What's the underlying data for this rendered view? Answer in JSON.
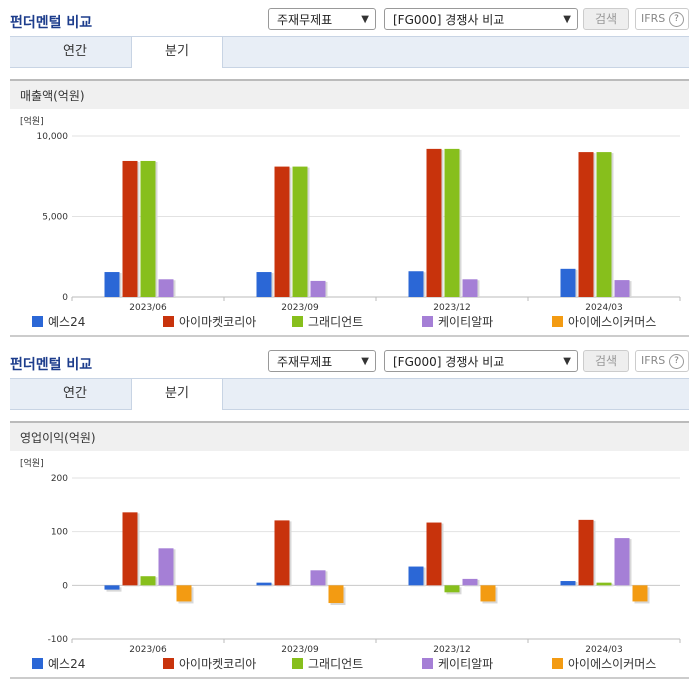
{
  "panels": [
    {
      "title": "펀더멘털 비교",
      "select_type": "주재무제표",
      "select_compare": "[FG000] 경쟁사 비교",
      "search_label": "검색",
      "ifrs_label": "IFRS",
      "ifrs_help": "?",
      "tabs": [
        "연간",
        "분기"
      ],
      "active_tab": 1,
      "section_title": "매출액(억원)"
    },
    {
      "title": "펀더멘털 비교",
      "select_type": "주재무제표",
      "select_compare": "[FG000] 경쟁사 비교",
      "search_label": "검색",
      "ifrs_label": "IFRS",
      "ifrs_help": "?",
      "tabs": [
        "연간",
        "분기"
      ],
      "active_tab": 1,
      "section_title": "영업이익(억원)"
    }
  ],
  "colors": {
    "예스24": "#2b67d6",
    "아이마켓코리아": "#c8330c",
    "그래디언트": "#87bf1c",
    "케이티알파": "#a57fd6",
    "아이에스이커머스": "#f39b12"
  },
  "chart_data": [
    {
      "type": "bar",
      "unit_label": "[억원]",
      "categories": [
        "2023/06",
        "2023/09",
        "2023/12",
        "2024/03"
      ],
      "ylim": [
        0,
        10000
      ],
      "yticks": [
        0,
        5000,
        10000
      ],
      "ytick_labels": [
        "0",
        "5,000",
        "10,000"
      ],
      "grid": true,
      "legend_position": "bottom",
      "series": [
        {
          "name": "예스24",
          "values": [
            1550,
            1550,
            1600,
            1750
          ]
        },
        {
          "name": "아이마켓코리아",
          "values": [
            8450,
            8100,
            9200,
            9000
          ]
        },
        {
          "name": "그래디언트",
          "values": [
            8450,
            8100,
            9200,
            9000
          ]
        },
        {
          "name": "케이티알파",
          "values": [
            1100,
            1000,
            1100,
            1050
          ]
        },
        {
          "name": "아이에스이커머스",
          "values": [
            0,
            0,
            0,
            0
          ]
        }
      ]
    },
    {
      "type": "bar",
      "unit_label": "[억원]",
      "categories": [
        "2023/06",
        "2023/09",
        "2023/12",
        "2024/03"
      ],
      "ylim": [
        -100,
        200
      ],
      "yticks": [
        -100,
        0,
        100,
        200
      ],
      "ytick_labels": [
        "-100",
        "0",
        "100",
        "200"
      ],
      "grid": true,
      "legend_position": "bottom",
      "series": [
        {
          "name": "예스24",
          "values": [
            -8,
            5,
            35,
            8
          ]
        },
        {
          "name": "아이마켓코리아",
          "values": [
            136,
            121,
            117,
            122
          ]
        },
        {
          "name": "그래디언트",
          "values": [
            17,
            0,
            -13,
            5
          ]
        },
        {
          "name": "케이티알파",
          "values": [
            69,
            28,
            12,
            88
          ]
        },
        {
          "name": "아이에스이커머스",
          "values": [
            -30,
            -33,
            -30,
            -30
          ]
        }
      ]
    }
  ]
}
